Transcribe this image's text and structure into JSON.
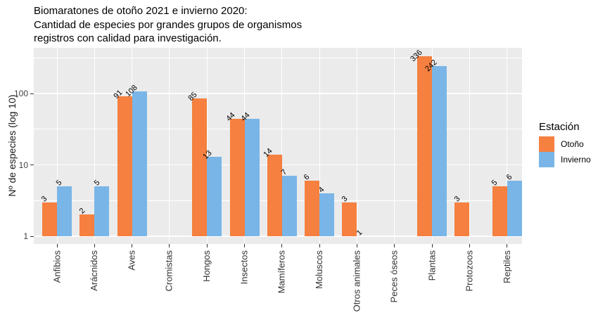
{
  "title": {
    "lines": [
      "Biomaratones de otoño 2021 e invierno 2020:",
      "Cantidad de especies por grandes grupos de organismos",
      "registros con calidad para investigación."
    ]
  },
  "legend": {
    "title": "Estación",
    "items": [
      {
        "label": "Otoño",
        "color": "#F5803F"
      },
      {
        "label": "Invierno",
        "color": "#79B6E7"
      }
    ]
  },
  "colors": {
    "panel_bg": "#EBEBEB",
    "grid": "#FFFFFF",
    "axis_text": "#404040",
    "otono": "#F5803F",
    "invierno": "#79B6E7"
  },
  "chart_data": {
    "type": "bar",
    "title": "Biomaratones de otoño 2021 e invierno 2020: Cantidad de especies por grandes grupos de organismos registros con calidad para investigación.",
    "xlabel": "",
    "ylabel": "Nº de especies (log 10)",
    "y_scale": "log10",
    "ylim": [
      1,
      437
    ],
    "yticks": [
      1,
      10,
      100
    ],
    "grid": {
      "on": true,
      "minor_y": [
        3.1623,
        31.623,
        316.23
      ]
    },
    "legend_position": "right",
    "categories": [
      "Anfibios",
      "Arácnidos",
      "Aves",
      "Cromistas",
      "Hongos",
      "Insectos",
      "Mamíferos",
      "Moluscos",
      "Otros animales",
      "Peces óseos",
      "Plantas",
      "Protozoos",
      "Reptiles"
    ],
    "series": [
      {
        "name": "Otoño",
        "color": "#F5803F",
        "values": [
          3,
          2,
          91,
          null,
          85,
          44,
          14,
          6,
          3,
          null,
          336,
          3,
          5
        ]
      },
      {
        "name": "Invierno",
        "color": "#79B6E7",
        "values": [
          5,
          5,
          108,
          null,
          13,
          44,
          7,
          4,
          1,
          null,
          242,
          null,
          6
        ]
      }
    ]
  }
}
